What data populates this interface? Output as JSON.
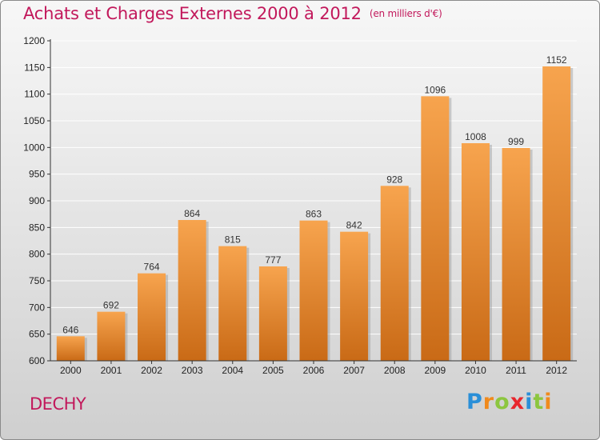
{
  "header": {
    "title": "Achats et Charges Externes 2000 à 2012",
    "subtitle": "(en milliers d'€)"
  },
  "footer": {
    "commune": "DECHY",
    "logo_text": "Proxiti",
    "logo_letters": [
      {
        "ch": "P",
        "color": "#2a8fd8"
      },
      {
        "ch": "r",
        "color": "#f08a1c"
      },
      {
        "ch": "o",
        "color": "#8cc63f"
      },
      {
        "ch": "x",
        "color": "#e8262d"
      },
      {
        "ch": "i",
        "color": "#2a8fd8"
      },
      {
        "ch": "t",
        "color": "#8cc63f"
      },
      {
        "ch": "i",
        "color": "#f08a1c"
      }
    ]
  },
  "colors": {
    "title": "#c2185b",
    "bar_top": "#f7a44e",
    "bar_bottom": "#c96a16",
    "grid": "#ffffff",
    "axis": "#333333"
  },
  "chart_data": {
    "type": "bar",
    "title": "Achats et Charges Externes 2000 à 2012",
    "subtitle": "(en milliers d'€)",
    "categories": [
      "2000",
      "2001",
      "2002",
      "2003",
      "2004",
      "2005",
      "2006",
      "2007",
      "2008",
      "2009",
      "2010",
      "2011",
      "2012"
    ],
    "values": [
      646,
      692,
      764,
      864,
      815,
      777,
      863,
      842,
      928,
      1096,
      1008,
      999,
      1152
    ],
    "ylim": [
      600,
      1200
    ],
    "yticks": [
      600,
      650,
      700,
      750,
      800,
      850,
      900,
      950,
      1000,
      1050,
      1100,
      1150,
      1200
    ],
    "grid": true,
    "data_labels": true
  }
}
